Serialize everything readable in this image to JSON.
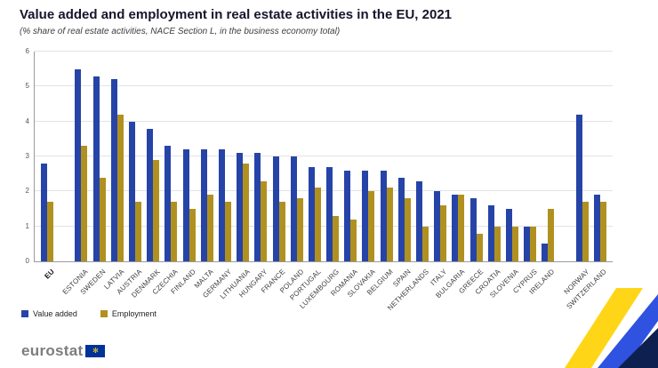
{
  "header": {
    "title": "Value added and employment in real estate activities in the EU, 2021",
    "subtitle": "(% share of real estate activities, NACE Section L, in the business economy total)"
  },
  "footer": {
    "logo_text": "eurostat"
  },
  "decoration": {
    "yellow": "#FFD617",
    "blue": "#2F52E0",
    "dark_navy": "#0E2050"
  },
  "chart_data": {
    "type": "bar",
    "title": "Value added and employment in real estate activities in the EU, 2021",
    "subtitle": "(% share of real estate activities, NACE Section L, in the business economy total)",
    "xlabel": "",
    "ylabel": "",
    "ylim": [
      0,
      6
    ],
    "yticks": [
      0,
      1,
      2,
      3,
      4,
      5,
      6
    ],
    "grid": true,
    "legend_position": "bottom-left",
    "bold_category": "EU",
    "breaks_after": [
      "EU",
      "IRELAND"
    ],
    "categories": [
      "EU",
      "ESTONIA",
      "SWEDEN",
      "LATVIA",
      "AUSTRIA",
      "DENMARK",
      "CZECHIA",
      "FINLAND",
      "MALTA",
      "GERMANY",
      "LITHUANIA",
      "HUNGARY",
      "FRANCE",
      "POLAND",
      "PORTUGAL",
      "LUXEMBOURG",
      "ROMANIA",
      "SLOVAKIA",
      "BELGIUM",
      "SPAIN",
      "NETHERLANDS",
      "ITALY",
      "BULGARIA",
      "GREECE",
      "CROATIA",
      "SLOVENIA",
      "CYPRUS",
      "IRELAND",
      "NORWAY",
      "SWITZERLAND"
    ],
    "series": [
      {
        "name": "Value added",
        "color": "#2644A7",
        "values": [
          2.8,
          5.5,
          5.3,
          5.2,
          4.0,
          3.8,
          3.3,
          3.2,
          3.2,
          3.2,
          3.1,
          3.1,
          3.0,
          3.0,
          2.7,
          2.7,
          2.6,
          2.6,
          2.6,
          2.4,
          2.3,
          2.0,
          1.9,
          1.8,
          1.6,
          1.5,
          1.0,
          0.5,
          4.2,
          1.9
        ]
      },
      {
        "name": "Employment",
        "color": "#B09120",
        "values": [
          1.7,
          3.3,
          2.4,
          4.2,
          1.7,
          2.9,
          1.7,
          1.5,
          1.9,
          1.7,
          2.8,
          2.3,
          1.7,
          1.8,
          2.1,
          1.3,
          1.2,
          2.0,
          2.1,
          1.8,
          1.0,
          1.6,
          1.9,
          0.8,
          1.0,
          1.0,
          1.0,
          1.5,
          1.7,
          1.7
        ]
      }
    ]
  }
}
